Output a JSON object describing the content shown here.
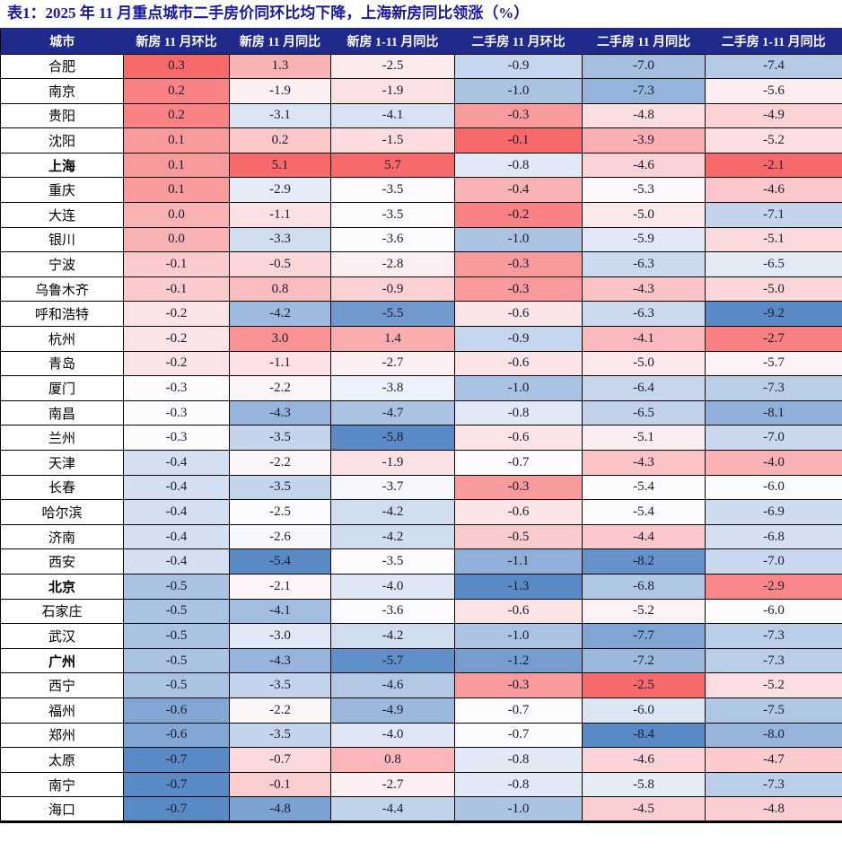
{
  "chart_data": {
    "type": "table",
    "title": "表1：2025 年 11 月重点城市二手房价同环比均下降，上海新房同比领涨（%）",
    "unit": "%",
    "columns": [
      "城市",
      "新房 11 月环比",
      "新房 11 月同比",
      "新房 1-11 月同比",
      "二手房 11 月环比",
      "二手房 11 月同比",
      "二手房 1-11 月同比"
    ],
    "rows": [
      {
        "city": "合肥",
        "values": [
          0.3,
          1.3,
          -2.5,
          -0.9,
          -7.0,
          -7.4
        ]
      },
      {
        "city": "南京",
        "values": [
          0.2,
          -1.9,
          -1.9,
          -1.0,
          -7.3,
          -5.6
        ]
      },
      {
        "city": "贵阳",
        "values": [
          0.2,
          -3.1,
          -4.1,
          -0.3,
          -4.8,
          -4.9
        ]
      },
      {
        "city": "沈阳",
        "values": [
          0.1,
          0.2,
          -1.5,
          -0.1,
          -3.9,
          -5.2
        ]
      },
      {
        "city": "上海",
        "values": [
          0.1,
          5.1,
          5.7,
          -0.8,
          -4.6,
          -2.1
        ]
      },
      {
        "city": "重庆",
        "values": [
          0.1,
          -2.9,
          -3.5,
          -0.4,
          -5.3,
          -4.6
        ]
      },
      {
        "city": "大连",
        "values": [
          0.0,
          -1.1,
          -3.5,
          -0.2,
          -5.0,
          -7.1
        ]
      },
      {
        "city": "银川",
        "values": [
          0.0,
          -3.3,
          -3.6,
          -1.0,
          -5.9,
          -5.1
        ]
      },
      {
        "city": "宁波",
        "values": [
          -0.1,
          -0.5,
          -2.8,
          -0.3,
          -6.3,
          -6.5
        ]
      },
      {
        "city": "乌鲁木齐",
        "values": [
          -0.1,
          0.8,
          -0.9,
          -0.3,
          -4.3,
          -5.0
        ]
      },
      {
        "city": "呼和浩特",
        "values": [
          -0.2,
          -4.2,
          -5.5,
          -0.6,
          -6.3,
          -9.2
        ]
      },
      {
        "city": "杭州",
        "values": [
          -0.2,
          3.0,
          1.4,
          -0.9,
          -4.1,
          -2.7
        ]
      },
      {
        "city": "青岛",
        "values": [
          -0.2,
          -1.1,
          -2.7,
          -0.6,
          -5.0,
          -5.7
        ]
      },
      {
        "city": "厦门",
        "values": [
          -0.3,
          -2.2,
          -3.8,
          -1.0,
          -6.4,
          -7.3
        ]
      },
      {
        "city": "南昌",
        "values": [
          -0.3,
          -4.3,
          -4.7,
          -0.8,
          -6.5,
          -8.1
        ]
      },
      {
        "city": "兰州",
        "values": [
          -0.3,
          -3.5,
          -5.8,
          -0.6,
          -5.1,
          -7.0
        ]
      },
      {
        "city": "天津",
        "values": [
          -0.4,
          -2.2,
          -1.9,
          -0.7,
          -4.3,
          -4.0
        ]
      },
      {
        "city": "长春",
        "values": [
          -0.4,
          -3.5,
          -3.7,
          -0.3,
          -5.4,
          -6.0
        ]
      },
      {
        "city": "哈尔滨",
        "values": [
          -0.4,
          -2.5,
          -4.2,
          -0.6,
          -5.4,
          -6.9
        ]
      },
      {
        "city": "济南",
        "values": [
          -0.4,
          -2.6,
          -4.2,
          -0.5,
          -4.4,
          -6.8
        ]
      },
      {
        "city": "西安",
        "values": [
          -0.4,
          -5.4,
          -3.5,
          -1.1,
          -8.2,
          -7.0
        ]
      },
      {
        "city": "北京",
        "values": [
          -0.5,
          -2.1,
          -4.0,
          -1.3,
          -6.8,
          -2.9
        ]
      },
      {
        "city": "石家庄",
        "values": [
          -0.5,
          -4.1,
          -3.6,
          -0.6,
          -5.2,
          -6.0
        ]
      },
      {
        "city": "武汉",
        "values": [
          -0.5,
          -3.0,
          -4.2,
          -1.0,
          -7.7,
          -7.3
        ]
      },
      {
        "city": "广州",
        "values": [
          -0.5,
          -4.3,
          -5.7,
          -1.2,
          -7.2,
          -7.3
        ]
      },
      {
        "city": "西宁",
        "values": [
          -0.5,
          -3.5,
          -4.6,
          -0.3,
          -2.5,
          -5.2
        ]
      },
      {
        "city": "福州",
        "values": [
          -0.6,
          -2.2,
          -4.9,
          -0.7,
          -6.0,
          -7.5
        ]
      },
      {
        "city": "郑州",
        "values": [
          -0.6,
          -3.5,
          -4.0,
          -0.7,
          -8.4,
          -8.0
        ]
      },
      {
        "city": "太原",
        "values": [
          -0.7,
          -0.7,
          0.8,
          -0.8,
          -4.6,
          -4.7
        ]
      },
      {
        "city": "南宁",
        "values": [
          -0.7,
          -0.1,
          -2.7,
          -0.8,
          -5.8,
          -7.3
        ]
      },
      {
        "city": "海口",
        "values": [
          -0.7,
          -4.8,
          -4.4,
          -1.0,
          -4.5,
          -4.8
        ]
      }
    ],
    "bold_cities": [
      "上海",
      "北京",
      "广州"
    ],
    "conditional_formatting": {
      "scope": "per-column",
      "midpoint": "median",
      "min_color": "#5A8AC6",
      "mid_color": "#FCFCFF",
      "max_color": "#F8696B"
    },
    "layout": {
      "grid": "on",
      "header_style": "navy-band-white-text"
    }
  },
  "style": {
    "header_bg": "#1F2A8A",
    "header_text": "#FFFFFF",
    "title_color": "#1A1A9C",
    "grid_color": "#000000",
    "body_text_color": "#1B1B2F"
  }
}
